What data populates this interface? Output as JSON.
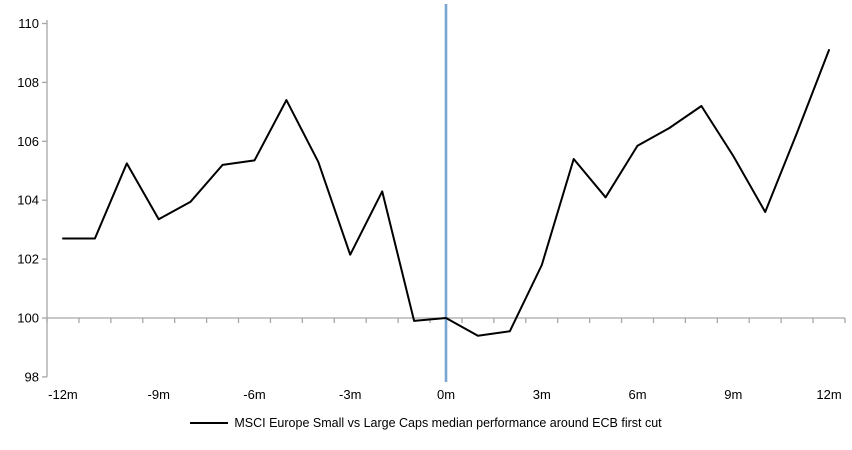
{
  "chart_data": {
    "type": "line",
    "title": "",
    "xlabel": "",
    "ylabel": "",
    "x_unit": "months relative to ECB first cut",
    "x": [
      -12,
      -11,
      -10,
      -9,
      -8,
      -7,
      -6,
      -5,
      -4,
      -3,
      -2,
      -1,
      0,
      1,
      2,
      3,
      4,
      5,
      6,
      7,
      8,
      9,
      10,
      11,
      12
    ],
    "series": [
      {
        "name": "MSCI Europe Small vs Large Caps median performance around ECB first cut",
        "values": [
          102.7,
          102.7,
          105.25,
          103.35,
          103.95,
          105.2,
          105.35,
          107.4,
          105.3,
          102.15,
          104.3,
          99.9,
          100.0,
          99.4,
          99.55,
          101.8,
          105.4,
          104.1,
          105.85,
          106.45,
          107.2,
          105.5,
          103.6,
          106.3,
          109.1
        ]
      }
    ],
    "ylim": [
      98,
      110.5
    ],
    "y_ticks": [
      98,
      100,
      102,
      104,
      106,
      108,
      110
    ],
    "x_tick_months": [
      -12,
      -9,
      -6,
      -3,
      0,
      3,
      6,
      9,
      12
    ],
    "x_tick_labels": [
      "-12m",
      "-9m",
      "-6m",
      "-3m",
      "0m",
      "3m",
      "6m",
      "9m",
      "12m"
    ],
    "baseline_value": 100,
    "event_line_month": 0,
    "grid": "baseline-only",
    "legend_position": "bottom-center",
    "legend_label": "MSCI Europe Small vs Large Caps median performance around ECB first cut",
    "colors": {
      "line": "#000000",
      "event_line": "#79A5D2",
      "axis": "#A6A6A6",
      "text": "#000000",
      "background": "#FFFFFF"
    }
  }
}
